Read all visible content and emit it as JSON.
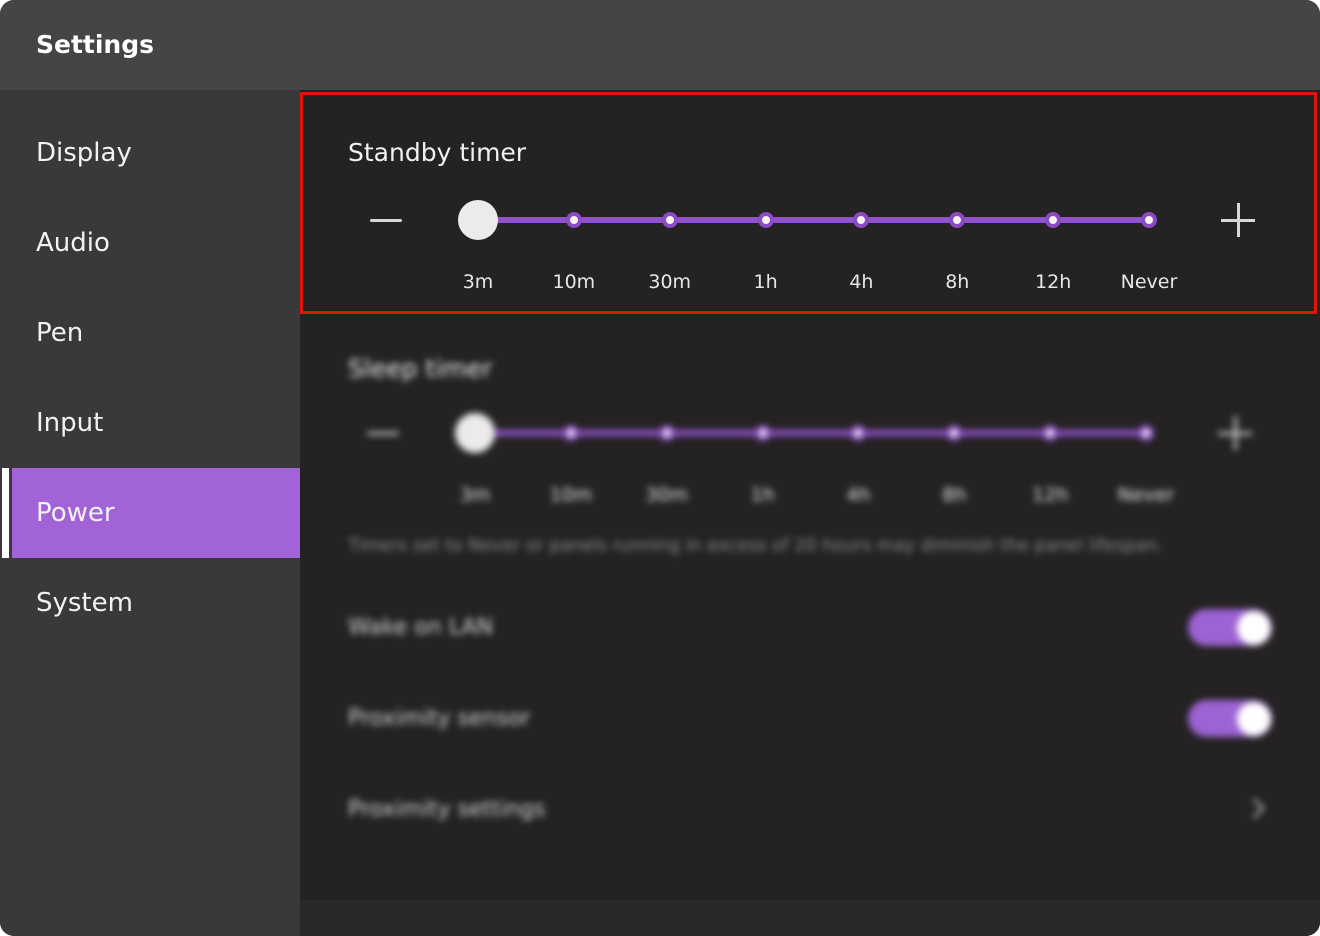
{
  "window": {
    "title": "Settings"
  },
  "sidebar": {
    "items": [
      {
        "label": "Display",
        "selected": false
      },
      {
        "label": "Audio",
        "selected": false
      },
      {
        "label": "Pen",
        "selected": false
      },
      {
        "label": "Input",
        "selected": false
      },
      {
        "label": "Power",
        "selected": true
      },
      {
        "label": "System",
        "selected": false
      }
    ]
  },
  "standby_timer": {
    "title": "Standby timer",
    "stops": [
      "3m",
      "10m",
      "30m",
      "1h",
      "4h",
      "8h",
      "12h",
      "Never"
    ],
    "value": "3m",
    "highlighted": true
  },
  "sleep_timer": {
    "title": "Sleep timer",
    "stops": [
      "3m",
      "10m",
      "30m",
      "1h",
      "4h",
      "8h",
      "12h",
      "Never"
    ],
    "value": "3m",
    "highlighted": false
  },
  "note": {
    "text": "Timers set to Never or panels running in excess of 20 hours may diminish the panel lifespan."
  },
  "rows": [
    {
      "label": "Wake on LAN",
      "type": "toggle",
      "state": "on"
    },
    {
      "label": "Proximity sensor",
      "type": "toggle",
      "state": "on"
    },
    {
      "label": "Proximity settings",
      "type": "chevron"
    }
  ],
  "colors": {
    "accent_purple": "#a263d6",
    "track_purple": "#9153cb",
    "toggle_purple": "#9d63d3",
    "highlight_red": "#e11408",
    "topbar_bg": "#464444",
    "sidebar_bg": "#3a3838",
    "content_bg": "#242222"
  }
}
